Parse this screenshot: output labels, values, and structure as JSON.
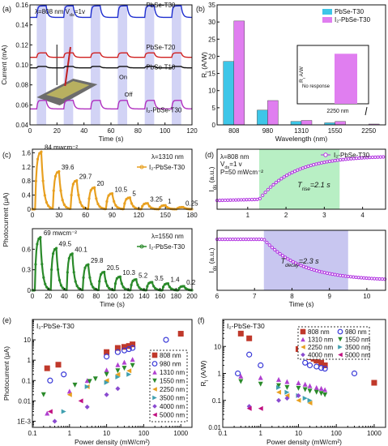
{
  "chart_data": [
    {
      "panel": "(a)",
      "type": "line",
      "annotation": "λ=808 nm   V",
      "annotation_sub": "ds",
      "annotation_tail": "=1v",
      "xlabel": "Time  (s)",
      "ylabel": "Current  (mA)",
      "xlim": [
        0,
        120
      ],
      "ylim": [
        0.04,
        0.16
      ],
      "xticks": [
        0,
        20,
        40,
        60,
        80,
        100,
        120
      ],
      "yticks": [
        0.04,
        0.06,
        0.08,
        0.1,
        0.12,
        0.14,
        0.16
      ],
      "on_label": "On",
      "off_label": "Off",
      "series": [
        {
          "name": "PbSe-T30",
          "color": "#1f2fd0",
          "base": 0.1475,
          "amp": 0.0115
        },
        {
          "name": "PbSe-T20",
          "color": "#d02020",
          "base": 0.1075,
          "amp": 0.0045
        },
        {
          "name": "PbSe-T10",
          "color": "#111111",
          "base": 0.097,
          "amp": 0.0015
        },
        {
          "name": "I₂-PbSe-T30",
          "color": "#b030c0",
          "base": 0.056,
          "amp": 0.0085
        }
      ],
      "on_intervals": [
        [
          5,
          12
        ],
        [
          25,
          32
        ],
        [
          45,
          52
        ],
        [
          65,
          72
        ],
        [
          85,
          92
        ],
        [
          105,
          112
        ]
      ]
    },
    {
      "panel": "(b)",
      "type": "bar",
      "xlabel": "Wavelength (nm)",
      "ylabel": "R",
      "ylabel_sub": "I",
      "ylabel_tail": " (A/W)",
      "categories": [
        "808",
        "980",
        "1310",
        "1550",
        "2250"
      ],
      "ylim": [
        0,
        35
      ],
      "yticks": [
        0,
        5,
        10,
        15,
        20,
        25,
        30,
        35
      ],
      "series": [
        {
          "name": "PbSe-T30",
          "color": "#3ec6e8",
          "values": [
            18.5,
            4.3,
            1.0,
            0.6,
            0
          ]
        },
        {
          "name": "I₂-PbSe-T30",
          "color": "#e07ef0",
          "values": [
            30.3,
            7.1,
            1.3,
            1.0,
            0.24
          ]
        }
      ],
      "inset": {
        "ylabel": "R",
        "ylabel_sub": "I",
        "ylabel_tail": " A/W",
        "no_response": "No response",
        "xcat": "2250 nm",
        "value": 0.24
      }
    },
    {
      "panel": "(c)",
      "type": "line",
      "xlabel": "Time  (s)",
      "ylabel": "Photocurrent (μA)",
      "top": {
        "legend": "I₂-PbSe-T30",
        "note": "λ=1310 nm",
        "color": "#e8a020",
        "xlim": [
          0,
          180
        ],
        "ylim": [
          0,
          1.7
        ],
        "yticks": [
          0,
          0.4,
          0.8,
          1.2,
          1.6
        ],
        "xticks": [
          0,
          30,
          60,
          90,
          120,
          150,
          180
        ],
        "peak_times": [
          10,
          30,
          50,
          70,
          90,
          110,
          130,
          150,
          170
        ],
        "peak_values": [
          1.64,
          1.08,
          0.82,
          0.62,
          0.45,
          0.33,
          0.17,
          0.11,
          0.06
        ],
        "labels": [
          "84 mwcm⁻²",
          "39.6",
          "29.7",
          "20",
          "10.5",
          "5",
          "3.25",
          "1",
          "0.25"
        ]
      },
      "bottom": {
        "legend": "I₂-PbSe-T30",
        "note": "λ=1550 nm",
        "color": "#2a8a2a",
        "xlim": [
          0,
          200
        ],
        "ylim": [
          0,
          0.9
        ],
        "yticks": [
          0,
          0.3,
          0.6
        ],
        "xticks": [
          0,
          20,
          40,
          60,
          80,
          100,
          120,
          140,
          160,
          180,
          200
        ],
        "peak_times": [
          10,
          30,
          50,
          70,
          90,
          110,
          130,
          150,
          170,
          190
        ],
        "peak_values": [
          0.78,
          0.62,
          0.54,
          0.38,
          0.27,
          0.2,
          0.16,
          0.12,
          0.1,
          0.06
        ],
        "labels": [
          "69 mwcm⁻²",
          "49.5",
          "40.1",
          "29.8",
          "20.5",
          "10.3",
          "5.2",
          "3.5",
          "1.4",
          "0.2"
        ]
      }
    },
    {
      "panel": "(d)",
      "type": "scatter",
      "legend": "I₂-PbSe-T30",
      "color": "#b030e0",
      "note1": "λ=808 nm",
      "note2": "V",
      "note2_sub": "ds",
      "note2_tail": "=1 v",
      "note3": "P=50 mWcm⁻²",
      "ylabel": "I",
      "ylabel_sub": "ds",
      "ylabel_tail": " (a.u.)",
      "rise": {
        "label": "T",
        "label_sub": "rise",
        "label_tail": "=2.1 s",
        "xlim": [
          0.2,
          4.6
        ],
        "xticks": [
          1,
          2,
          3,
          4
        ],
        "shade": [
          1.3,
          3.4
        ]
      },
      "decay": {
        "label": "T",
        "label_sub": "decay",
        "label_tail": "=2.3 s",
        "xlim": [
          6,
          10.5
        ],
        "xticks": [
          6,
          7,
          8,
          9,
          10
        ],
        "shade": [
          7.25,
          9.5
        ]
      },
      "xlabel": "Time  (s)"
    },
    {
      "panel": "(e)",
      "type": "scatter",
      "title": "I₂-PbSe-T30",
      "xlabel": "Power density (mW/cm²)",
      "ylabel": "Photocurrent (μA)",
      "xlim": [
        0.1,
        2000
      ],
      "ylim": [
        0.0005,
        100
      ],
      "xticks": [
        0.1,
        1,
        10,
        100,
        1000
      ],
      "xticklabels": [
        "0.1",
        "1",
        "10",
        "100",
        "1000"
      ],
      "yticks": [
        0.001,
        0.01,
        0.1,
        1,
        10
      ],
      "yticklabels": [
        "1E-3",
        "0.01",
        "0.1",
        "1",
        "10"
      ],
      "series": [
        {
          "name": "808 nm",
          "color": "#c0392b",
          "marker": "square",
          "x": [
            0.25,
            0.5,
            10,
            20,
            30,
            40,
            50,
            1000
          ],
          "y": [
            0.4,
            0.6,
            2.5,
            4,
            4.5,
            5,
            6,
            20
          ]
        },
        {
          "name": "980 nm",
          "color": "#3a3ad8",
          "marker": "circle",
          "x": [
            0.3,
            0.7,
            10,
            20,
            30,
            40,
            50,
            400
          ],
          "y": [
            0.1,
            0.2,
            1.5,
            2.5,
            3,
            3.5,
            4,
            10
          ]
        },
        {
          "name": "1310 nm",
          "color": "#b040d0",
          "marker": "triangle-up",
          "x": [
            0.25,
            1,
            3,
            10,
            20,
            30,
            50
          ],
          "y": [
            0.0025,
            0.03,
            0.1,
            0.33,
            0.6,
            0.8,
            1.1
          ]
        },
        {
          "name": "1550 nm",
          "color": "#2a8a2a",
          "marker": "triangle-down",
          "x": [
            0.2,
            1.4,
            3.5,
            5,
            10,
            20,
            30,
            50
          ],
          "y": [
            0.02,
            0.06,
            0.09,
            0.12,
            0.2,
            0.3,
            0.4,
            0.55
          ]
        },
        {
          "name": "2250 nm",
          "color": "#e8a020",
          "marker": "triangle-left",
          "x": [
            1,
            3,
            10,
            20,
            40
          ],
          "y": [
            0.02,
            0.05,
            0.1,
            0.2,
            0.3
          ]
        },
        {
          "name": "3500 nm",
          "color": "#40a0b0",
          "marker": "triangle-right",
          "x": [
            0.7,
            3,
            10,
            20,
            40
          ],
          "y": [
            0.003,
            0.05,
            0.08,
            0.15,
            0.2
          ]
        },
        {
          "name": "4000 nm",
          "color": "#8a4bd0",
          "marker": "diamond",
          "x": [
            0.4,
            3,
            10,
            20
          ],
          "y": [
            0.001,
            0.005,
            0.02,
            0.04
          ]
        },
        {
          "name": "5000 nm",
          "color": "#c01080",
          "marker": "triangle-left",
          "x": [
            0.3,
            2
          ],
          "y": [
            0.003,
            0.01
          ]
        }
      ]
    },
    {
      "panel": "(f)",
      "type": "scatter",
      "title": "I₂-PbSe-T30",
      "xlabel": "Power density (mW/cm²)",
      "ylabel": "R",
      "ylabel_sub": "I",
      "ylabel_tail": " (A/W)",
      "xlim": [
        0.1,
        2000
      ],
      "ylim": [
        0.01,
        100
      ],
      "xticks": [
        0.1,
        1,
        10,
        100,
        1000
      ],
      "xticklabels": [
        "0.1",
        "1",
        "10",
        "100",
        "1000"
      ],
      "yticks": [
        0.01,
        0.1,
        1,
        10
      ],
      "yticklabels": [
        "0.01",
        "0.1",
        "1",
        "10"
      ],
      "series": [
        {
          "name": "808 nm",
          "color": "#c0392b",
          "marker": "square",
          "x": [
            0.3,
            0.5,
            10,
            15,
            20,
            25,
            30,
            40,
            50,
            1000
          ],
          "y": [
            30,
            20,
            8,
            5,
            4,
            3.5,
            3,
            2.5,
            2,
            0.45
          ]
        },
        {
          "name": "980 nm",
          "color": "#3a3ad8",
          "marker": "circle",
          "x": [
            0.25,
            0.5,
            1,
            15,
            20,
            30,
            40,
            50,
            300
          ],
          "y": [
            1,
            5,
            2,
            2.5,
            2,
            1.8,
            1.6,
            1.5,
            1
          ]
        },
        {
          "name": "1310 nm",
          "color": "#b040d0",
          "marker": "triangle-up",
          "x": [
            0.3,
            1,
            3,
            5,
            10,
            15,
            20,
            30,
            40,
            50
          ],
          "y": [
            0.8,
            0.7,
            0.6,
            0.5,
            0.45,
            0.4,
            0.35,
            0.3,
            0.28,
            0.25
          ]
        },
        {
          "name": "1550 nm",
          "color": "#2a8a2a",
          "marker": "triangle-down",
          "x": [
            0.3,
            1,
            3,
            5,
            10,
            15,
            20,
            30,
            40,
            50
          ],
          "y": [
            0.5,
            0.4,
            0.35,
            0.3,
            0.28,
            0.25,
            0.22,
            0.2,
            0.18,
            0.16
          ]
        },
        {
          "name": "2250 nm",
          "color": "#e8a020",
          "marker": "triangle-left",
          "x": [
            3,
            5,
            10,
            20
          ],
          "y": [
            0.2,
            0.15,
            0.1,
            0.08
          ]
        },
        {
          "name": "3500 nm",
          "color": "#40a0b0",
          "marker": "triangle-right",
          "x": [
            3,
            5,
            10,
            15,
            20
          ],
          "y": [
            0.3,
            0.2,
            0.15,
            0.12,
            0.1
          ]
        },
        {
          "name": "4000 nm",
          "color": "#8a4bd0",
          "marker": "diamond",
          "x": [
            0.5,
            3,
            5,
            10
          ],
          "y": [
            0.06,
            0.1,
            0.12,
            0.15
          ]
        },
        {
          "name": "5000 nm",
          "color": "#c01080",
          "marker": "triangle-left",
          "x": [
            0.5,
            1
          ],
          "y": [
            0.05,
            0.05
          ]
        }
      ]
    }
  ]
}
